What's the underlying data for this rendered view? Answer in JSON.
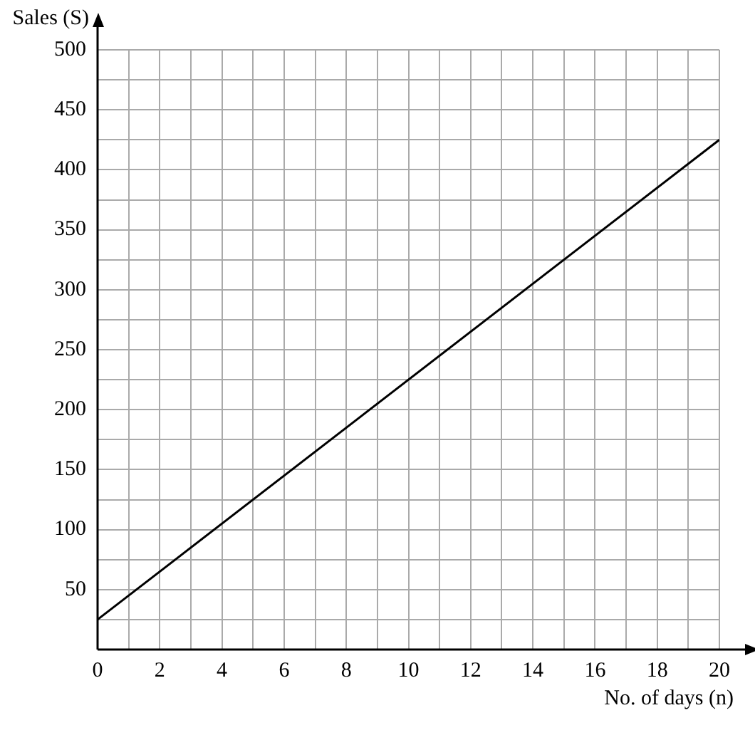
{
  "chart_data": {
    "type": "line",
    "xlabel": "No. of days (n)",
    "ylabel": "Sales (S)",
    "x": [
      0,
      20
    ],
    "series": [
      {
        "color": "#000000",
        "values": [
          25,
          425
        ]
      }
    ],
    "xlim": [
      0,
      20
    ],
    "ylim": [
      0,
      500
    ],
    "xticks": [
      0,
      {
        "value": 1,
        "label": null
      },
      2,
      {
        "value": 3,
        "label": null
      },
      4,
      {
        "value": 5,
        "label": null
      },
      6,
      {
        "value": 7,
        "label": null
      },
      8,
      {
        "value": 9,
        "label": null
      },
      10,
      {
        "value": 11,
        "label": null
      },
      12,
      {
        "value": 13,
        "label": null
      },
      14,
      {
        "value": 15,
        "label": null
      },
      16,
      {
        "value": 17,
        "label": null
      },
      18,
      {
        "value": 19,
        "label": null
      },
      20
    ],
    "yticks": [
      {
        "value": 0,
        "label": null
      },
      {
        "value": 25,
        "label": null
      },
      50,
      {
        "value": 75,
        "label": null
      },
      100,
      {
        "value": 125,
        "label": null
      },
      150,
      {
        "value": 175,
        "label": null
      },
      200,
      {
        "value": 225,
        "label": null
      },
      250,
      {
        "value": 275,
        "label": null
      },
      300,
      {
        "value": 325,
        "label": null
      },
      350,
      {
        "value": 375,
        "label": null
      },
      400,
      {
        "value": 425,
        "label": null
      },
      450,
      {
        "value": 475,
        "label": null
      },
      500
    ],
    "grid": true,
    "legend": false,
    "marker": "none",
    "line_style": "solid"
  }
}
